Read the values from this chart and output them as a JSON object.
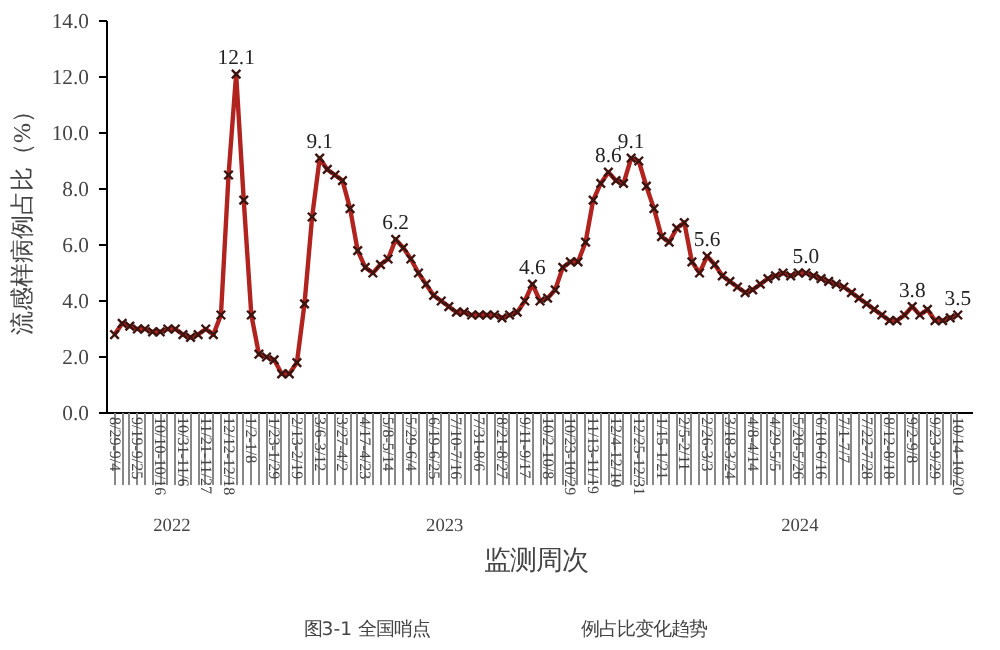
{
  "chart_data": {
    "type": "line",
    "ylabel": "流感样病例占比（%）",
    "xlabel": "监测周次",
    "categories": [
      "8/29-9/4",
      null,
      null,
      "9/19-9/25",
      null,
      null,
      "10/10-10/16",
      null,
      null,
      "10/31-11/6",
      null,
      null,
      "11/21-11/27",
      null,
      null,
      "12/12-12/18",
      null,
      null,
      "1/2-1/8",
      null,
      null,
      "1/23-1/29",
      null,
      null,
      "2/13-2/19",
      null,
      null,
      "3/6-3/12",
      null,
      null,
      "3/27-4/2",
      null,
      null,
      "4/17-4/23",
      null,
      null,
      "5/8-5/14",
      null,
      null,
      "5/29-6/4",
      null,
      null,
      "6/19-6/25",
      null,
      null,
      "7/10-7/16",
      null,
      null,
      "7/31-8/6",
      null,
      null,
      "8/21-8/27",
      null,
      null,
      "9/11-9/17",
      null,
      null,
      "10/2-10/8",
      null,
      null,
      "10/23-10/29",
      null,
      null,
      "11/13-11/19",
      null,
      null,
      "12/4-12/10",
      null,
      null,
      "12/25-12/31",
      null,
      null,
      "1/15-1/21",
      null,
      null,
      "2/5-2/11",
      null,
      null,
      "2/26-3/3",
      null,
      null,
      "3/18-3/24",
      null,
      null,
      "4/8-4/14",
      null,
      null,
      "4/29-5/5",
      null,
      null,
      "5/20-5/26",
      null,
      null,
      "6/10-6/16",
      null,
      null,
      "7/1-7/7",
      null,
      null,
      "7/22-7/28",
      null,
      null,
      "8/12-8/18",
      null,
      null,
      "9/2-9/8",
      null,
      null,
      "9/23-9/29",
      null,
      null,
      "10/14-10/20"
    ],
    "series": [
      {
        "color": "#b0231f",
        "values": [
          2.8,
          3.2,
          3.1,
          3.0,
          3.0,
          2.9,
          2.9,
          3.0,
          3.0,
          2.8,
          2.7,
          2.8,
          3.0,
          2.8,
          3.5,
          8.5,
          12.1,
          7.6,
          3.5,
          2.1,
          2.0,
          1.9,
          1.4,
          1.4,
          1.8,
          3.9,
          7.0,
          9.1,
          8.7,
          8.5,
          8.3,
          7.3,
          5.8,
          5.2,
          5.0,
          5.3,
          5.5,
          6.2,
          5.9,
          5.5,
          5.0,
          4.6,
          4.2,
          4.0,
          3.8,
          3.6,
          3.6,
          3.5,
          3.5,
          3.5,
          3.5,
          3.4,
          3.5,
          3.6,
          4.0,
          4.6,
          4.0,
          4.1,
          4.4,
          5.2,
          5.4,
          5.4,
          6.1,
          7.6,
          8.2,
          8.6,
          8.3,
          8.2,
          9.1,
          9.0,
          8.1,
          7.3,
          6.3,
          6.1,
          6.6,
          6.8,
          5.4,
          5.0,
          5.6,
          5.3,
          4.9,
          4.7,
          4.5,
          4.3,
          4.4,
          4.6,
          4.8,
          4.9,
          5.0,
          4.9,
          5.0,
          5.0,
          4.9,
          4.8,
          4.7,
          4.6,
          4.5,
          4.3,
          4.1,
          3.9,
          3.7,
          3.5,
          3.3,
          3.3,
          3.5,
          3.8,
          3.5,
          3.7,
          3.3,
          3.3,
          3.4,
          3.5
        ],
        "value_labels": [
          null,
          null,
          null,
          null,
          null,
          null,
          null,
          null,
          null,
          null,
          null,
          null,
          null,
          null,
          null,
          null,
          "12.1",
          null,
          null,
          null,
          null,
          null,
          null,
          null,
          null,
          null,
          null,
          "9.1",
          null,
          null,
          null,
          null,
          null,
          null,
          null,
          null,
          null,
          "6.2",
          null,
          null,
          null,
          null,
          null,
          null,
          null,
          null,
          null,
          null,
          null,
          null,
          null,
          null,
          null,
          null,
          null,
          "4.6",
          null,
          null,
          null,
          null,
          null,
          null,
          null,
          null,
          null,
          "8.6",
          null,
          null,
          "9.1",
          null,
          null,
          null,
          null,
          null,
          null,
          null,
          null,
          null,
          "5.6",
          null,
          null,
          null,
          null,
          null,
          null,
          null,
          null,
          null,
          null,
          null,
          null,
          "5.0",
          null,
          null,
          null,
          null,
          null,
          null,
          null,
          null,
          null,
          null,
          null,
          null,
          null,
          "3.8",
          null,
          null,
          null,
          null,
          null,
          "3.5"
        ]
      }
    ],
    "ylim": [
      0,
      14
    ],
    "yticks": [
      {
        "value": 0,
        "label": "0.0"
      },
      {
        "value": 2,
        "label": "2.0"
      },
      {
        "value": 4,
        "label": "4.0"
      },
      {
        "value": 6,
        "label": "6.0"
      },
      {
        "value": 8,
        "label": "8.0"
      },
      {
        "value": 10,
        "label": "10.0"
      },
      {
        "value": 12,
        "label": "12.0"
      },
      {
        "value": 14,
        "label": "14.0"
      }
    ],
    "marker": "cross",
    "grid": false,
    "annotations": [
      "2022",
      "2023",
      "2024",
      "图3-1 全国哨点",
      "例占比变化趋势"
    ]
  }
}
